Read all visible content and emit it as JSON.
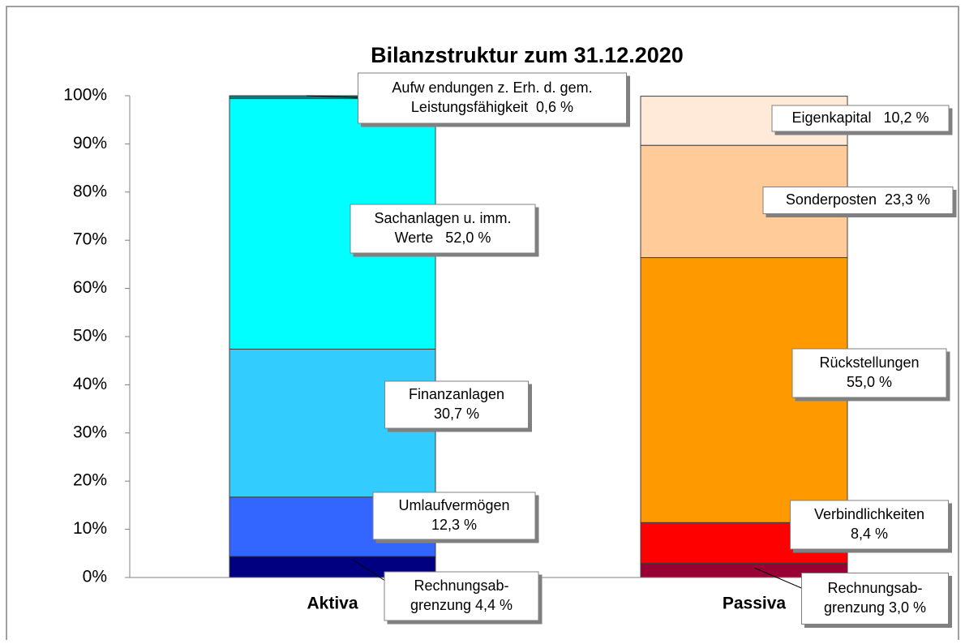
{
  "chart_data": {
    "type": "stacked_bar",
    "title": "Bilanzstruktur zum 31.12.2020",
    "ylim": [
      0,
      100
    ],
    "yticks": [
      {
        "value": 0,
        "label": "0%"
      },
      {
        "value": 10,
        "label": "10%"
      },
      {
        "value": 20,
        "label": "20%"
      },
      {
        "value": 30,
        "label": "30%"
      },
      {
        "value": 40,
        "label": "40%"
      },
      {
        "value": 50,
        "label": "50%"
      },
      {
        "value": 60,
        "label": "60%"
      },
      {
        "value": 70,
        "label": "70%"
      },
      {
        "value": 80,
        "label": "80%"
      },
      {
        "value": 90,
        "label": "90%"
      },
      {
        "value": 100,
        "label": "100%"
      }
    ],
    "bars": [
      {
        "category": "Aktiva",
        "segments": [
          {
            "label": [
              "Rechnungsab-",
              "grenzung 4,4 %"
            ],
            "value": 4.4,
            "color": "#000080"
          },
          {
            "label": [
              "Umlaufvermögen",
              "12,3 %"
            ],
            "value": 12.3,
            "color": "#3366ff"
          },
          {
            "label": [
              "Finanzanlagen",
              "30,7 %"
            ],
            "value": 30.7,
            "color": "#33ccff"
          },
          {
            "label": [
              "Sachanlagen u. imm.",
              "Werte   52,0 %"
            ],
            "value": 52.0,
            "color": "#00ffff"
          },
          {
            "label": [
              "Aufw endungen z. Erh. d. gem.",
              "Leistungsfähigkeit  0,6 %"
            ],
            "value": 0.6,
            "color": "#008080"
          }
        ]
      },
      {
        "category": "Passiva",
        "segments": [
          {
            "label": [
              "Rechnungsab-",
              "grenzung 3,0 %"
            ],
            "value": 3.0,
            "color": "#990033"
          },
          {
            "label": [
              "Verbindlichkeiten",
              "8,4 %"
            ],
            "value": 8.4,
            "color": "#ff0000"
          },
          {
            "label": [
              "Rückstellungen",
              "55,0 %"
            ],
            "value": 55.0,
            "color": "#ff9900"
          },
          {
            "label": [
              "Sonderposten  23,3 %"
            ],
            "value": 23.3,
            "color": "#ffcc99"
          },
          {
            "label": [
              "Eigenkapital   10,2 %"
            ],
            "value": 10.2,
            "color": "#ffe9d9"
          }
        ]
      }
    ]
  }
}
